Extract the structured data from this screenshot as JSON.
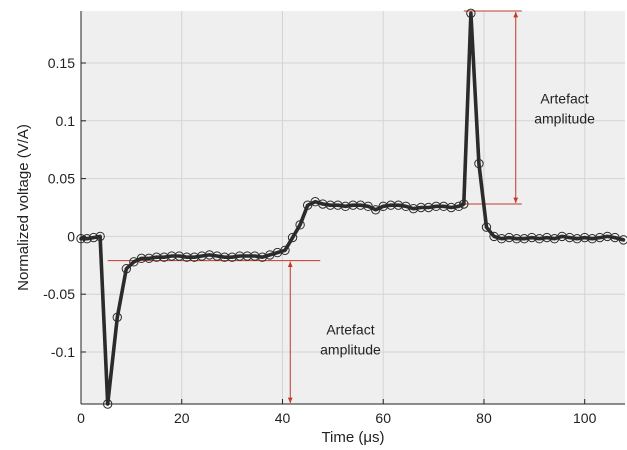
{
  "chart_data": {
    "type": "line",
    "xlabel": "Time (μs)",
    "ylabel": "Normalized voltage (V/A)",
    "xlim": [
      0,
      108
    ],
    "ylim": [
      -0.145,
      0.195
    ],
    "grid": true,
    "x_ticks": [
      0,
      20,
      40,
      60,
      80,
      100
    ],
    "x_tick_labels": [
      "0",
      "20",
      "40",
      "60",
      "80",
      "100"
    ],
    "y_ticks": [
      0.15,
      0.1,
      0.05,
      0,
      -0.05,
      -0.1
    ],
    "y_tick_labels": [
      "0.15",
      "0.1",
      "0.05",
      "0",
      "-0.05",
      "-0.1"
    ],
    "colors": {
      "line": "#2b2b2b",
      "annotation": "#c0392b",
      "plot_background": "#efefef",
      "grid": "#d4d4d4"
    },
    "series": [
      {
        "x": [
          0,
          1.2,
          2.5,
          3.8,
          5.3,
          7.2,
          9.0,
          10.5,
          12.0,
          13.5,
          15.0,
          16.5,
          18.0,
          19.5,
          21.0,
          22.5,
          24.0,
          25.5,
          27.0,
          28.5,
          30.0,
          31.5,
          33.0,
          34.5,
          36.0,
          37.5,
          39.0,
          40.5,
          42.0,
          43.5,
          45.0,
          46.5,
          48.0,
          49.5,
          51.0,
          52.5,
          54.0,
          55.5,
          57.0,
          58.5,
          60.0,
          61.5,
          63.0,
          64.5,
          66.0,
          67.5,
          69.0,
          70.5,
          72.0,
          73.5,
          75.0,
          76.0,
          77.4,
          79.0,
          80.5,
          82.0,
          83.5,
          85.0,
          86.5,
          88.0,
          89.5,
          91.0,
          92.5,
          94.0,
          95.5,
          97.0,
          98.5,
          100.0,
          101.5,
          103.0,
          104.5,
          106.0,
          107.7
        ],
        "y": [
          -0.002,
          -0.002,
          -0.001,
          0.0,
          -0.145,
          -0.07,
          -0.028,
          -0.022,
          -0.019,
          -0.019,
          -0.018,
          -0.018,
          -0.017,
          -0.017,
          -0.018,
          -0.018,
          -0.017,
          -0.016,
          -0.017,
          -0.018,
          -0.018,
          -0.017,
          -0.017,
          -0.017,
          -0.018,
          -0.016,
          -0.014,
          -0.012,
          -0.001,
          0.01,
          0.027,
          0.03,
          0.028,
          0.027,
          0.027,
          0.026,
          0.027,
          0.027,
          0.026,
          0.023,
          0.026,
          0.027,
          0.027,
          0.026,
          0.024,
          0.025,
          0.025,
          0.026,
          0.026,
          0.025,
          0.026,
          0.028,
          0.193,
          0.063,
          0.008,
          0.0,
          -0.002,
          -0.001,
          -0.002,
          -0.002,
          -0.001,
          -0.002,
          -0.001,
          -0.002,
          0.0,
          -0.001,
          -0.002,
          -0.001,
          -0.002,
          -0.001,
          0.0,
          -0.001,
          -0.003
        ]
      }
    ],
    "annotations": [
      {
        "id": "lower",
        "text_lines": [
          "Artefact",
          "amplitude"
        ],
        "x_from": 5.3,
        "x_to": 47.5,
        "y_bottom": -0.145,
        "y_top": -0.021,
        "text_anchor_x": 53.5,
        "text_anchor_y": -0.085
      },
      {
        "id": "upper",
        "text_lines": [
          "Artefact",
          "amplitude"
        ],
        "x_from": 76.0,
        "x_to": 87.5,
        "y_bottom": 0.028,
        "y_top": 0.195,
        "text_anchor_x": 96.0,
        "text_anchor_y": 0.115
      }
    ]
  }
}
